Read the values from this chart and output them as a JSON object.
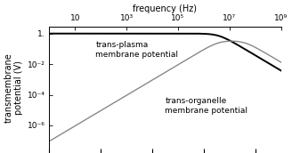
{
  "freq_min": 1,
  "freq_max": 1000000000.0,
  "top_xlabel": "frequency (Hz)",
  "ylabel": "transmembrane\npotential (V)",
  "yticks": [
    1.0,
    0.01,
    0.0001,
    1e-06
  ],
  "ytick_labels": [
    "1.",
    "10⁻²",
    "10⁻⁴",
    "10⁻⁶"
  ],
  "xticks": [
    10,
    1000.0,
    100000.0,
    10000000.0,
    1000000000.0
  ],
  "xtick_labels": [
    "10",
    "10³",
    "10⁵",
    "10⁷",
    "10⁹"
  ],
  "plasma_label": "trans-plasma\nmembrane potential",
  "organelle_label": "trans-organelle\nmembrane potential",
  "plasma_color": "#000000",
  "organelle_color": "#888888",
  "background": "#ffffff",
  "ylim_low": 3e-08,
  "ylim_high": 3.0,
  "tau_cell": 4.17e-08,
  "tau_org": 4.17e-09,
  "org_peak_value": 0.32,
  "plasma_low_value": 1.0
}
